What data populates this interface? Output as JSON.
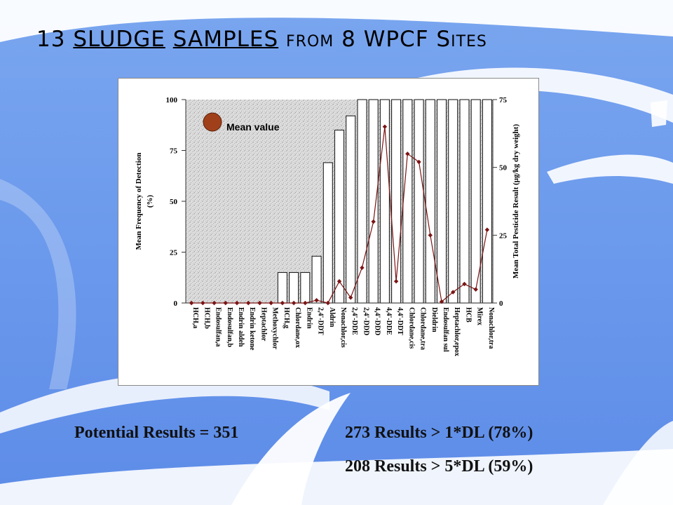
{
  "slide": {
    "title_parts": {
      "count": "13",
      "word1": "SLUDGE",
      "word2": "SAMPLES",
      "middle": "from 8 WPCF",
      "end": "Sites"
    },
    "potential": "Potential Results = 351",
    "results_1dl": "273 Results > 1*DL  (78%)",
    "results_5dl": "208 Results > 5*DL (59%)"
  },
  "chart_data": {
    "type": "bar",
    "categories": [
      "HCH,a",
      "HCH,b",
      "Endosulfan,a",
      "Endosulfan,b",
      "Endrin aldeh",
      "Endrin ketone",
      "Heptachlor",
      "Methoxychlor",
      "HCH,g",
      "Chlordane,ox",
      "Endrin",
      "2,4'-DDT",
      "Aldrin",
      "Nonachlor,cis",
      "2,4'-DDE",
      "2,4'-DDD",
      "4,4'-DDD",
      "4,4'-DDE",
      "4,4'-DDT",
      "Chlordane,cis",
      "Chlordane,tra",
      "Dieldrin",
      "Endosulfan sul",
      "Heptachlor,epox",
      "HCB",
      "Mirex",
      "Nonachlor,tra"
    ],
    "ylabel": "Mean Frequency of Detection (%)",
    "y2label": "Mean Total Pesticide Result (µg/kg dry weight)",
    "ylim": [
      0,
      100
    ],
    "y2lim": [
      0,
      75
    ],
    "yticks": [
      "0",
      "25",
      "50",
      "75",
      "100"
    ],
    "y2ticks": [
      "0",
      "25",
      "50",
      "75"
    ],
    "legend": "Mean value",
    "legend_color": "#a0401a",
    "line_color": "#7a1414",
    "series": [
      {
        "axis": "left",
        "kind": "bar",
        "values": [
          0,
          0,
          0,
          0,
          0,
          0,
          0,
          0,
          15,
          15,
          15,
          23,
          69,
          85,
          92,
          100,
          100,
          100,
          100,
          100,
          100,
          100,
          100,
          100,
          100,
          100,
          100
        ]
      },
      {
        "axis": "right",
        "kind": "line",
        "values": [
          0,
          0,
          0,
          0,
          0,
          0,
          0,
          0,
          0,
          0,
          0,
          1,
          0,
          8,
          2,
          13,
          30,
          65,
          8,
          55,
          52,
          25,
          0.5,
          4,
          7,
          5,
          27
        ]
      }
    ]
  }
}
